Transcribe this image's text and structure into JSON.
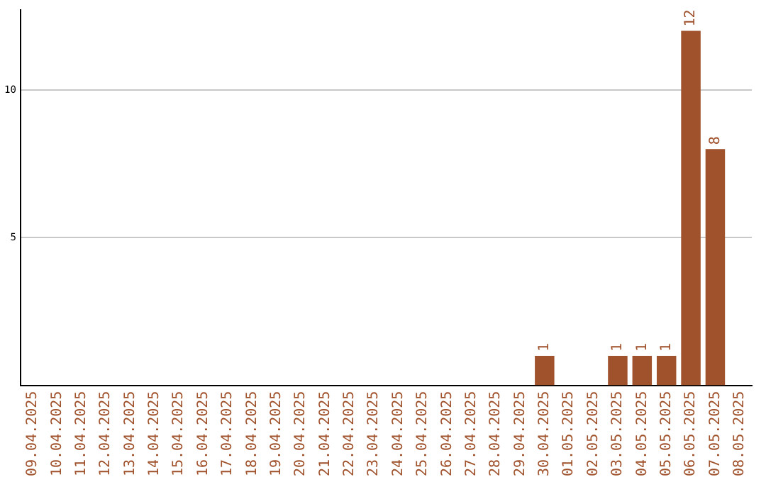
{
  "chart_data": {
    "type": "bar",
    "categories": [
      "09.04.2025",
      "10.04.2025",
      "11.04.2025",
      "12.04.2025",
      "13.04.2025",
      "14.04.2025",
      "15.04.2025",
      "16.04.2025",
      "17.04.2025",
      "18.04.2025",
      "19.04.2025",
      "20.04.2025",
      "21.04.2025",
      "22.04.2025",
      "23.04.2025",
      "24.04.2025",
      "25.04.2025",
      "26.04.2025",
      "27.04.2025",
      "28.04.2025",
      "29.04.2025",
      "30.04.2025",
      "01.05.2025",
      "02.05.2025",
      "03.05.2025",
      "04.05.2025",
      "05.05.2025",
      "06.05.2025",
      "07.05.2025",
      "08.05.2025"
    ],
    "values": [
      0,
      0,
      0,
      0,
      0,
      0,
      0,
      0,
      0,
      0,
      0,
      0,
      0,
      0,
      0,
      0,
      0,
      0,
      0,
      0,
      0,
      1,
      0,
      0,
      1,
      1,
      1,
      12,
      8,
      0
    ],
    "value_labels": [
      null,
      null,
      null,
      null,
      null,
      null,
      null,
      null,
      null,
      null,
      null,
      null,
      null,
      null,
      null,
      null,
      null,
      null,
      null,
      null,
      null,
      "1",
      null,
      null,
      "1",
      "1",
      "1",
      "12",
      "8",
      null
    ],
    "color": "#a0522d",
    "ylim": [
      0,
      12.7
    ],
    "yticks": [
      5,
      10
    ],
    "grid": "y",
    "legend": false
  }
}
